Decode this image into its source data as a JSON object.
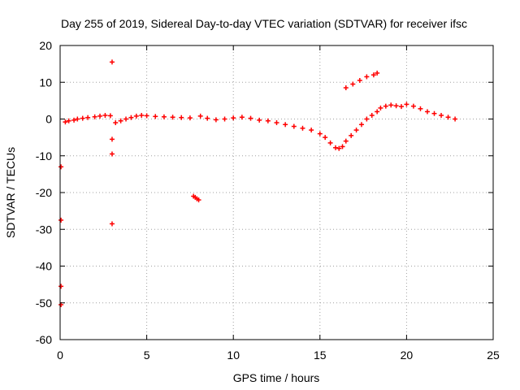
{
  "chart_data": {
    "type": "scatter",
    "title": "Day 255 of 2019, Sidereal Day-to-day VTEC variation (SDTVAR) for receiver ifsc",
    "xlabel": "GPS time / hours",
    "ylabel": "SDTVAR / TECUs",
    "xlim": [
      0,
      25
    ],
    "ylim": [
      -60,
      20
    ],
    "xticks": [
      0,
      5,
      10,
      15,
      20,
      25
    ],
    "yticks": [
      -60,
      -50,
      -40,
      -30,
      -20,
      -10,
      0,
      10,
      20
    ],
    "grid": true,
    "marker": "plus",
    "color": "#ff0000",
    "series": [
      {
        "name": "SDTVAR",
        "x": [
          0.05,
          0.05,
          0.05,
          0.05,
          0.3,
          0.5,
          0.8,
          1.0,
          1.3,
          1.6,
          2.0,
          2.3,
          2.6,
          2.9,
          3.0,
          3.0,
          3.0,
          3.0,
          3.2,
          3.5,
          3.8,
          4.1,
          4.4,
          4.7,
          5.0,
          5.5,
          6.0,
          6.5,
          7.0,
          7.5,
          7.7,
          7.8,
          7.9,
          8.0,
          8.1,
          8.5,
          9.0,
          9.5,
          10.0,
          10.5,
          11.0,
          11.5,
          12.0,
          12.5,
          13.0,
          13.5,
          14.0,
          14.5,
          15.0,
          15.3,
          15.6,
          15.9,
          16.1,
          16.3,
          16.5,
          16.8,
          17.1,
          17.4,
          17.7,
          18.0,
          18.3,
          16.5,
          16.9,
          17.3,
          17.7,
          18.1,
          18.3,
          18.5,
          18.8,
          19.1,
          19.4,
          19.7,
          20.0,
          20.4,
          20.8,
          21.2,
          21.6,
          22.0,
          22.4,
          22.8
        ],
        "y": [
          -13,
          -27.5,
          -45.5,
          -50.5,
          -0.8,
          -0.5,
          -0.3,
          0,
          0.2,
          0.4,
          0.6,
          0.8,
          1.0,
          0.9,
          15.5,
          -5.5,
          -9.5,
          -28.5,
          -1.0,
          -0.5,
          0,
          0.4,
          0.8,
          1.0,
          0.9,
          0.7,
          0.6,
          0.5,
          0.4,
          0.3,
          -21,
          -21.3,
          -21.7,
          -22,
          0.8,
          0.2,
          -0.2,
          0,
          0.3,
          0.5,
          0.2,
          -0.3,
          -0.5,
          -1.0,
          -1.5,
          -2.0,
          -2.5,
          -3.0,
          -4.0,
          -5.0,
          -6.5,
          -7.8,
          -8.0,
          -7.5,
          -6.0,
          -4.5,
          -3.0,
          -1.5,
          0,
          1.0,
          2.0,
          8.5,
          9.5,
          10.5,
          11.5,
          12.0,
          12.5,
          3.0,
          3.5,
          3.8,
          3.6,
          3.4,
          4.0,
          3.5,
          2.8,
          2.0,
          1.5,
          1.0,
          0.5,
          0
        ]
      }
    ]
  }
}
